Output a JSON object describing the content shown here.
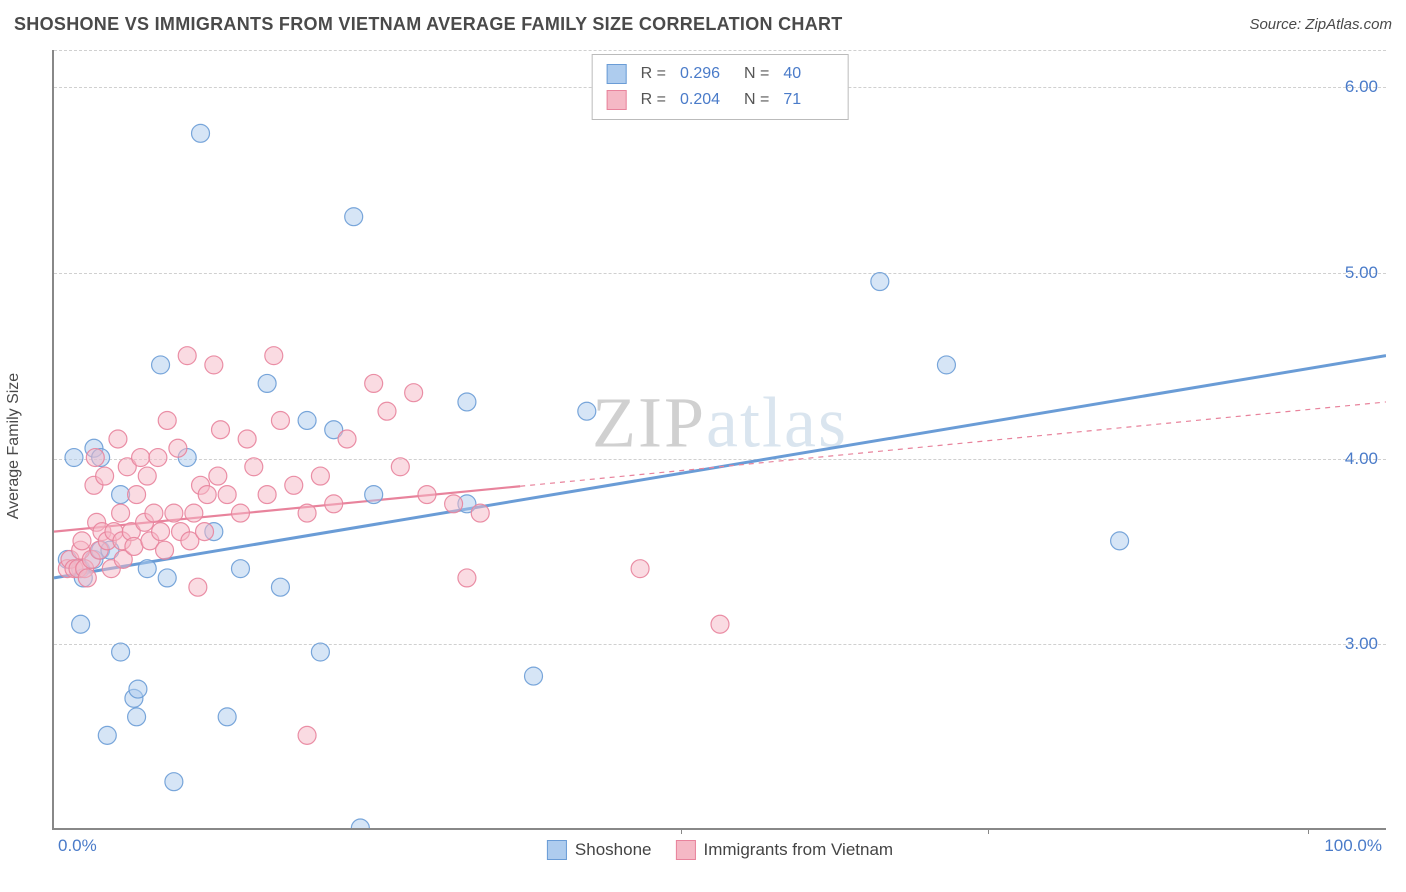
{
  "title": "SHOSHONE VS IMMIGRANTS FROM VIETNAM AVERAGE FAMILY SIZE CORRELATION CHART",
  "source": "Source: ZipAtlas.com",
  "ylabel": "Average Family Size",
  "watermark_z": "ZIP",
  "watermark_rest": "atlas",
  "chart": {
    "type": "scatter",
    "xlim": [
      0,
      100
    ],
    "ylim": [
      2.0,
      6.2
    ],
    "xtick_min_label": "0.0%",
    "xtick_max_label": "100.0%",
    "xtick_marks": [
      47,
      70,
      94
    ],
    "ytick_labels": [
      "3.00",
      "4.00",
      "5.00",
      "6.00"
    ],
    "ytick_values": [
      3.0,
      4.0,
      5.0,
      6.0
    ],
    "grid_color": "#d0d0d0",
    "background_color": "#ffffff",
    "axis_color": "#888888",
    "tick_label_color": "#4a7bc9",
    "marker_radius": 9,
    "series": [
      {
        "name": "Shoshone",
        "fill": "#aeccee",
        "stroke": "#6a9cd6",
        "R": "0.296",
        "N": "40",
        "trend": {
          "y_at_x0": 3.35,
          "y_at_x100": 4.55,
          "width": 3,
          "dash": ""
        },
        "points": [
          [
            1,
            3.45
          ],
          [
            1.5,
            4.0
          ],
          [
            2,
            3.4
          ],
          [
            2,
            3.1
          ],
          [
            2.2,
            3.35
          ],
          [
            3,
            3.45
          ],
          [
            3,
            4.05
          ],
          [
            3.5,
            4.0
          ],
          [
            3.5,
            3.5
          ],
          [
            4,
            2.5
          ],
          [
            4.2,
            3.5
          ],
          [
            5,
            2.95
          ],
          [
            5,
            3.8
          ],
          [
            6,
            2.7
          ],
          [
            6.2,
            2.6
          ],
          [
            6.3,
            2.75
          ],
          [
            8,
            4.5
          ],
          [
            7,
            3.4
          ],
          [
            8.5,
            3.35
          ],
          [
            9,
            2.25
          ],
          [
            10,
            4.0
          ],
          [
            11,
            5.75
          ],
          [
            12,
            3.6
          ],
          [
            13,
            2.6
          ],
          [
            14,
            3.4
          ],
          [
            16,
            4.4
          ],
          [
            17,
            3.3
          ],
          [
            19,
            4.2
          ],
          [
            20,
            2.95
          ],
          [
            21,
            4.15
          ],
          [
            22.5,
            5.3
          ],
          [
            23,
            2.0
          ],
          [
            24,
            3.8
          ],
          [
            31,
            4.3
          ],
          [
            31,
            3.75
          ],
          [
            36,
            2.82
          ],
          [
            40,
            4.25
          ],
          [
            62,
            4.95
          ],
          [
            67,
            4.5
          ],
          [
            80,
            3.55
          ]
        ]
      },
      {
        "name": "Immigrants from Vietnam",
        "fill": "#f5b8c5",
        "stroke": "#e8839c",
        "R": "0.204",
        "N": "71",
        "trend": {
          "y_at_x0": 3.6,
          "y_at_x100": 4.3,
          "width": 2.2,
          "dash": "solid-then-dash",
          "dash_after_x": 35
        },
        "points": [
          [
            1,
            3.4
          ],
          [
            1.2,
            3.45
          ],
          [
            1.5,
            3.4
          ],
          [
            1.8,
            3.4
          ],
          [
            2,
            3.5
          ],
          [
            2.1,
            3.55
          ],
          [
            2.3,
            3.4
          ],
          [
            2.5,
            3.35
          ],
          [
            2.8,
            3.45
          ],
          [
            3,
            3.85
          ],
          [
            3.1,
            4.0
          ],
          [
            3.2,
            3.65
          ],
          [
            3.4,
            3.5
          ],
          [
            3.6,
            3.6
          ],
          [
            3.8,
            3.9
          ],
          [
            4,
            3.55
          ],
          [
            4.3,
            3.4
          ],
          [
            4.5,
            3.6
          ],
          [
            4.8,
            4.1
          ],
          [
            5,
            3.7
          ],
          [
            5.1,
            3.55
          ],
          [
            5.2,
            3.45
          ],
          [
            5.5,
            3.95
          ],
          [
            5.8,
            3.6
          ],
          [
            6,
            3.52
          ],
          [
            6.2,
            3.8
          ],
          [
            6.5,
            4.0
          ],
          [
            6.8,
            3.65
          ],
          [
            7,
            3.9
          ],
          [
            7.2,
            3.55
          ],
          [
            7.5,
            3.7
          ],
          [
            7.8,
            4.0
          ],
          [
            8,
            3.6
          ],
          [
            8.3,
            3.5
          ],
          [
            8.5,
            4.2
          ],
          [
            9,
            3.7
          ],
          [
            9.3,
            4.05
          ],
          [
            9.5,
            3.6
          ],
          [
            10,
            4.55
          ],
          [
            10.2,
            3.55
          ],
          [
            10.5,
            3.7
          ],
          [
            10.8,
            3.3
          ],
          [
            11,
            3.85
          ],
          [
            11.3,
            3.6
          ],
          [
            11.5,
            3.8
          ],
          [
            12,
            4.5
          ],
          [
            12.3,
            3.9
          ],
          [
            12.5,
            4.15
          ],
          [
            13,
            3.8
          ],
          [
            14,
            3.7
          ],
          [
            14.5,
            4.1
          ],
          [
            15,
            3.95
          ],
          [
            16,
            3.8
          ],
          [
            16.5,
            4.55
          ],
          [
            17,
            4.2
          ],
          [
            18,
            3.85
          ],
          [
            19,
            2.5
          ],
          [
            19,
            3.7
          ],
          [
            20,
            3.9
          ],
          [
            21,
            3.75
          ],
          [
            22,
            4.1
          ],
          [
            24,
            4.4
          ],
          [
            25,
            4.25
          ],
          [
            26,
            3.95
          ],
          [
            27,
            4.35
          ],
          [
            28,
            3.8
          ],
          [
            30,
            3.75
          ],
          [
            31,
            3.35
          ],
          [
            32,
            3.7
          ],
          [
            44,
            3.4
          ],
          [
            50,
            3.1
          ]
        ]
      }
    ],
    "legend_top": [
      {
        "swatch_fill": "#aeccee",
        "swatch_stroke": "#6a9cd6",
        "r_label": "R  =",
        "r_val": "0.296",
        "n_label": "N  =",
        "n_val": "40"
      },
      {
        "swatch_fill": "#f5b8c5",
        "swatch_stroke": "#e8839c",
        "r_label": "R  =",
        "r_val": "0.204",
        "n_label": "N  =",
        "n_val": "71"
      }
    ],
    "legend_bottom": [
      {
        "swatch_fill": "#aeccee",
        "swatch_stroke": "#6a9cd6",
        "label": "Shoshone"
      },
      {
        "swatch_fill": "#f5b8c5",
        "swatch_stroke": "#e8839c",
        "label": "Immigrants from Vietnam"
      }
    ]
  }
}
